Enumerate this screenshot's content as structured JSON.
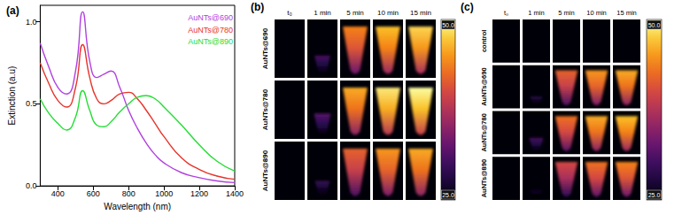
{
  "chart_data": {
    "type": "line",
    "title": "(a)",
    "x_label": "Wavelength (nm)",
    "y_label": "Extinction (a.u)",
    "x": [
      300,
      350,
      400,
      450,
      500,
      540,
      580,
      620,
      660,
      700,
      750,
      800,
      850,
      900,
      950,
      1000,
      1100,
      1200,
      1300,
      1400
    ],
    "series": [
      {
        "name": "AuNTs@690",
        "color": "#b040e0",
        "values": [
          0.87,
          0.72,
          0.6,
          0.56,
          0.7,
          1.06,
          0.76,
          0.66,
          0.68,
          0.7,
          0.6,
          0.46,
          0.35,
          0.26,
          0.19,
          0.14,
          0.08,
          0.05,
          0.03,
          0.02
        ]
      },
      {
        "name": "AuNTs@780",
        "color": "#e8332a",
        "values": [
          0.75,
          0.62,
          0.52,
          0.48,
          0.6,
          0.86,
          0.66,
          0.53,
          0.5,
          0.52,
          0.56,
          0.57,
          0.53,
          0.46,
          0.38,
          0.3,
          0.17,
          0.1,
          0.06,
          0.04
        ]
      },
      {
        "name": "AuNTs@890",
        "color": "#22dd33",
        "values": [
          0.53,
          0.44,
          0.38,
          0.34,
          0.42,
          0.58,
          0.46,
          0.37,
          0.36,
          0.39,
          0.45,
          0.5,
          0.54,
          0.55,
          0.53,
          0.48,
          0.37,
          0.25,
          0.15,
          0.09
        ]
      }
    ],
    "xlim": [
      300,
      1400
    ],
    "xticks": [
      400,
      600,
      800,
      1000,
      1200,
      1400
    ],
    "ylim": [
      0,
      1.1
    ],
    "yticks": [
      {
        "value": 0,
        "label": "0.0"
      },
      {
        "value": 0.5,
        "label": "0.5"
      },
      {
        "value": 1,
        "label": "1.0"
      }
    ],
    "legend": "upper right",
    "grid": false
  },
  "panels": [
    {
      "title": "(b)",
      "columns": [
        "t₀",
        "1 min",
        "5 min",
        "10 min",
        "15 min"
      ],
      "rows": [
        {
          "label": "AuNTs@690",
          "temperatures": [
            25,
            31,
            44,
            47,
            48
          ]
        },
        {
          "label": "AuNTs@780",
          "temperatures": [
            25,
            32,
            46,
            49,
            50
          ]
        },
        {
          "label": "AuNTs@890",
          "temperatures": [
            25,
            30,
            42,
            45,
            46
          ]
        }
      ],
      "colorbar": {
        "range": [
          25,
          50
        ],
        "ticks": [
          {
            "value": 50,
            "label": "50.0"
          },
          {
            "value": 25,
            "label": "25.0"
          }
        ]
      }
    },
    {
      "title": "(c)",
      "columns": [
        "t₀",
        "1 min",
        "5 min",
        "10 min",
        "15 min"
      ],
      "rows": [
        {
          "label": "control",
          "temperatures": [
            25,
            25,
            25,
            26,
            26
          ]
        },
        {
          "label": "AuNTs@690",
          "temperatures": [
            25,
            29,
            42,
            45,
            46
          ]
        },
        {
          "label": "AuNTs@780",
          "temperatures": [
            25,
            31,
            43,
            46,
            47
          ]
        },
        {
          "label": "AuNTs@890",
          "temperatures": [
            25,
            28,
            40,
            43,
            44
          ]
        }
      ],
      "colorbar": {
        "range": [
          25,
          50
        ],
        "ticks": [
          {
            "value": 50,
            "label": "50.0"
          },
          {
            "value": 25,
            "label": "25.0"
          }
        ]
      }
    }
  ]
}
